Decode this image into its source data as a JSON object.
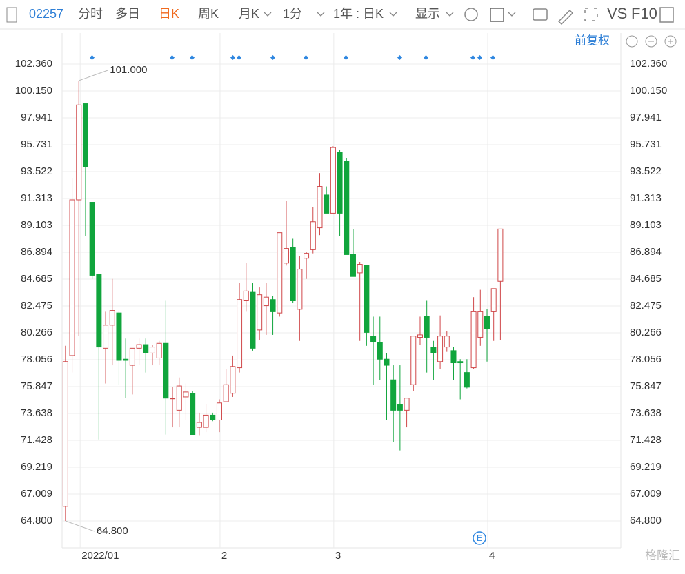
{
  "toolbar": {
    "code": "02257",
    "tabs": [
      "分时",
      "多日",
      "日K",
      "周K",
      "月K",
      "1分",
      "1年 : 日K",
      "显示"
    ],
    "active_tab": 2,
    "vs": "VS",
    "f10": "F10"
  },
  "adjust": "前复权",
  "watermark": "格隆汇",
  "chart_data": {
    "type": "candlestick",
    "up_color": "#d0484a",
    "down_color": "#10a53c",
    "grid": true,
    "ylim": [
      62.59,
      103.21
    ],
    "yticks": [
      {
        "value": 102.36,
        "label": "102.360"
      },
      {
        "value": 100.15,
        "label": "100.150"
      },
      97.941,
      95.731,
      93.522,
      91.313,
      89.103,
      86.894,
      84.685,
      82.475,
      80.266,
      78.056,
      75.847,
      73.638,
      71.428,
      69.219,
      67.009,
      {
        "value": 64.8,
        "label": "64.800"
      }
    ],
    "xlim": [
      -0.5,
      83
    ],
    "xticks": [
      {
        "value": 2.2,
        "label": "2022/01"
      },
      {
        "value": 23.1,
        "label": "2"
      },
      {
        "value": 40.1,
        "label": "3"
      },
      {
        "value": 63.1,
        "label": "4"
      }
    ],
    "annotations": [
      {
        "text": "101.000",
        "index": 2,
        "value": 101.0
      },
      {
        "text": "64.800",
        "index": 0,
        "value": 64.8
      }
    ],
    "open": [
      66.0,
      78.4,
      91.2,
      99.1,
      91.0,
      85.1,
      79.0,
      80.9,
      81.9,
      78.1,
      77.6,
      79.0,
      79.3,
      78.6,
      78.2,
      79.4,
      74.9,
      73.9,
      75.0,
      75.3,
      72.5,
      72.5,
      73.5,
      73.1,
      74.6,
      75.3,
      77.4,
      82.9,
      83.6,
      80.5,
      82.5,
      83.0,
      81.9,
      86.0,
      87.3,
      82.2,
      86.4,
      87.1,
      88.9,
      91.6,
      90.1,
      95.1,
      94.4,
      86.7,
      85.2,
      85.8,
      80.0,
      79.5,
      78.1,
      76.4,
      74.4,
      73.9,
      76.0,
      79.9,
      81.6,
      79.1,
      77.9,
      79.1,
      78.8,
      77.9,
      77.0,
      77.4,
      79.9,
      81.6,
      82.0,
      84.5
    ],
    "high": [
      79.2,
      93.0,
      101.0,
      99.1,
      91.0,
      85.1,
      82.0,
      84.7,
      82.1,
      79.8,
      79.0,
      79.8,
      79.8,
      79.3,
      79.6,
      82.9,
      75.8,
      76.6,
      76.1,
      75.5,
      73.7,
      74.4,
      73.7,
      74.8,
      77.3,
      78.4,
      84.4,
      86.0,
      84.4,
      84.0,
      84.4,
      83.3,
      88.5,
      91.1,
      88.0,
      86.6,
      86.9,
      90.6,
      93.4,
      92.3,
      95.6,
      95.3,
      94.6,
      88.8,
      86.1,
      85.8,
      81.6,
      81.6,
      78.6,
      77.6,
      77.6,
      74.9,
      80.0,
      81.6,
      82.9,
      79.6,
      81.7,
      80.4,
      79.1,
      78.1,
      78.1,
      83.2,
      83.8,
      82.2,
      83.9,
      88.8
    ],
    "low": [
      64.8,
      77.0,
      80.0,
      88.2,
      84.7,
      71.5,
      76.1,
      77.6,
      76.0,
      74.9,
      75.2,
      77.6,
      77.0,
      77.6,
      77.6,
      71.9,
      72.5,
      72.5,
      73.1,
      71.9,
      71.8,
      72.1,
      73.0,
      72.1,
      74.6,
      75.0,
      77.0,
      82.0,
      78.8,
      79.7,
      80.1,
      80.1,
      81.6,
      85.8,
      82.7,
      79.6,
      84.7,
      86.8,
      88.3,
      90.1,
      90.1,
      88.2,
      86.7,
      84.9,
      79.6,
      79.2,
      76.0,
      76.4,
      73.1,
      71.3,
      70.6,
      72.5,
      75.5,
      79.3,
      77.0,
      76.4,
      77.3,
      78.7,
      76.4,
      74.8,
      75.7,
      77.3,
      79.2,
      77.9,
      79.6,
      79.7
    ],
    "close": [
      77.9,
      91.2,
      99.0,
      93.9,
      85.0,
      79.1,
      80.9,
      82.1,
      78.0,
      78.0,
      79.0,
      79.3,
      78.6,
      79.1,
      79.4,
      74.9,
      74.9,
      75.9,
      75.4,
      71.9,
      72.9,
      73.5,
      73.1,
      74.5,
      76.0,
      77.5,
      83.0,
      83.7,
      79.0,
      83.4,
      83.2,
      82.0,
      88.5,
      87.2,
      82.9,
      85.5,
      86.8,
      89.4,
      92.3,
      90.1,
      95.5,
      90.1,
      86.7,
      84.9,
      85.9,
      80.3,
      79.5,
      78.1,
      77.6,
      73.9,
      73.9,
      74.9,
      80.0,
      80.1,
      79.9,
      78.6,
      80.0,
      80.0,
      77.8,
      77.8,
      75.8,
      82.0,
      82.0,
      80.6,
      83.9,
      88.8
    ]
  }
}
